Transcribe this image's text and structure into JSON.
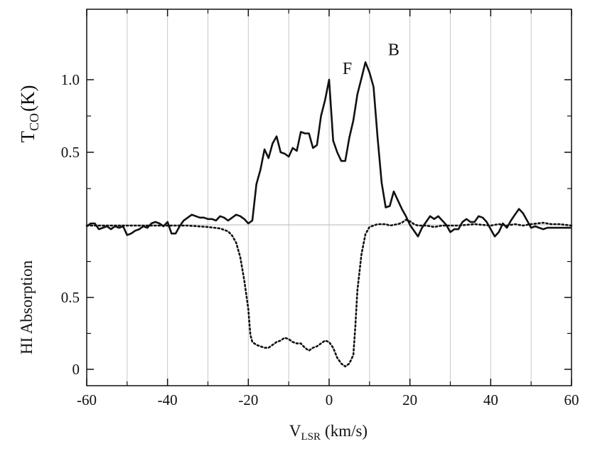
{
  "chart_data": {
    "type": "line",
    "xlabel_main": "V",
    "xlabel_sub": "LSR",
    "xlabel_unit": "(km/s)",
    "ylabel_top_main": "T",
    "ylabel_top_sub": "CO",
    "ylabel_top_unit": "(K)",
    "ylabel_bottom": "HI Absorption",
    "xlim": [
      -60,
      60
    ],
    "x_ticks": [
      "-60",
      "-40",
      "-20",
      "0",
      "20",
      "40",
      "60"
    ],
    "x_gridlines": [
      -50,
      -40,
      -30,
      -20,
      -10,
      0,
      10,
      20,
      30,
      40,
      50
    ],
    "y_ticks_top": [
      "0.5",
      "1.0"
    ],
    "y_ticks_bottom": [
      "0",
      "0.5"
    ],
    "grid": "vertical",
    "annotations": [
      {
        "text": "F",
        "x": 4.5,
        "y": 1.04
      },
      {
        "text": "B",
        "x": 16,
        "y": 1.17
      }
    ],
    "series": [
      {
        "axis": "top",
        "unit": "K",
        "style": "solid",
        "points": [
          [
            -60,
            -0.01
          ],
          [
            -59,
            0.01
          ],
          [
            -58,
            0.01
          ],
          [
            -57,
            -0.03
          ],
          [
            -56,
            -0.02
          ],
          [
            -55,
            -0.01
          ],
          [
            -54,
            -0.03
          ],
          [
            -53,
            -0.01
          ],
          [
            -52,
            -0.02
          ],
          [
            -51,
            -0.01
          ],
          [
            -50,
            -0.07
          ],
          [
            -49,
            -0.06
          ],
          [
            -48,
            -0.04
          ],
          [
            -47,
            -0.03
          ],
          [
            -46,
            -0.01
          ],
          [
            -45,
            -0.02
          ],
          [
            -44,
            0.01
          ],
          [
            -43,
            0.02
          ],
          [
            -42,
            0.01
          ],
          [
            -41,
            -0.01
          ],
          [
            -40,
            0.02
          ],
          [
            -39,
            -0.06
          ],
          [
            -38,
            -0.06
          ],
          [
            -37,
            -0.01
          ],
          [
            -36,
            0.03
          ],
          [
            -35,
            0.05
          ],
          [
            -34,
            0.07
          ],
          [
            -33,
            0.06
          ],
          [
            -32,
            0.05
          ],
          [
            -31,
            0.05
          ],
          [
            -30,
            0.04
          ],
          [
            -29,
            0.04
          ],
          [
            -28,
            0.03
          ],
          [
            -27,
            0.06
          ],
          [
            -26,
            0.05
          ],
          [
            -25,
            0.03
          ],
          [
            -24,
            0.05
          ],
          [
            -23,
            0.07
          ],
          [
            -22,
            0.06
          ],
          [
            -21,
            0.04
          ],
          [
            -20,
            0.01
          ],
          [
            -19,
            0.03
          ],
          [
            -18,
            0.28
          ],
          [
            -17,
            0.38
          ],
          [
            -16,
            0.52
          ],
          [
            -15,
            0.46
          ],
          [
            -14,
            0.56
          ],
          [
            -13,
            0.61
          ],
          [
            -12,
            0.5
          ],
          [
            -11,
            0.49
          ],
          [
            -10,
            0.47
          ],
          [
            -9,
            0.53
          ],
          [
            -8,
            0.51
          ],
          [
            -7,
            0.64
          ],
          [
            -6,
            0.63
          ],
          [
            -5,
            0.63
          ],
          [
            -4,
            0.53
          ],
          [
            -3,
            0.55
          ],
          [
            -2,
            0.75
          ],
          [
            -1,
            0.86
          ],
          [
            0,
            1.0
          ],
          [
            1,
            0.58
          ],
          [
            2,
            0.5
          ],
          [
            3,
            0.44
          ],
          [
            4,
            0.44
          ],
          [
            5,
            0.6
          ],
          [
            6,
            0.72
          ],
          [
            7,
            0.9
          ],
          [
            8,
            1.01
          ],
          [
            9,
            1.12
          ],
          [
            10,
            1.05
          ],
          [
            11,
            0.95
          ],
          [
            12,
            0.6
          ],
          [
            13,
            0.29
          ],
          [
            14,
            0.12
          ],
          [
            15,
            0.13
          ],
          [
            16,
            0.23
          ],
          [
            17,
            0.17
          ],
          [
            18,
            0.11
          ],
          [
            19,
            0.06
          ],
          [
            20,
            0.0
          ],
          [
            21,
            -0.04
          ],
          [
            22,
            -0.08
          ],
          [
            23,
            -0.02
          ],
          [
            24,
            0.02
          ],
          [
            25,
            0.06
          ],
          [
            26,
            0.04
          ],
          [
            27,
            0.06
          ],
          [
            28,
            0.03
          ],
          [
            29,
            0.0
          ],
          [
            30,
            -0.05
          ],
          [
            31,
            -0.03
          ],
          [
            32,
            -0.03
          ],
          [
            33,
            0.02
          ],
          [
            34,
            0.04
          ],
          [
            35,
            0.02
          ],
          [
            36,
            0.02
          ],
          [
            37,
            0.06
          ],
          [
            38,
            0.05
          ],
          [
            39,
            0.02
          ],
          [
            40,
            -0.03
          ],
          [
            41,
            -0.08
          ],
          [
            42,
            -0.05
          ],
          [
            43,
            0.01
          ],
          [
            44,
            -0.02
          ],
          [
            45,
            0.03
          ],
          [
            46,
            0.07
          ],
          [
            47,
            0.11
          ],
          [
            48,
            0.08
          ],
          [
            49,
            0.03
          ],
          [
            50,
            -0.02
          ],
          [
            51,
            -0.01
          ],
          [
            52,
            -0.02
          ],
          [
            53,
            -0.03
          ],
          [
            54,
            -0.02
          ],
          [
            55,
            -0.02
          ],
          [
            56,
            -0.02
          ],
          [
            57,
            -0.02
          ],
          [
            58,
            -0.02
          ],
          [
            59,
            -0.02
          ],
          [
            60,
            -0.02
          ]
        ]
      },
      {
        "axis": "bottom",
        "unit": "absorption",
        "style": "dotted",
        "points": [
          [
            -60,
            1.0
          ],
          [
            -50,
            1.0
          ],
          [
            -40,
            1.0
          ],
          [
            -35,
            1.0
          ],
          [
            -30,
            0.99
          ],
          [
            -27,
            0.98
          ],
          [
            -25,
            0.96
          ],
          [
            -24,
            0.93
          ],
          [
            -23,
            0.88
          ],
          [
            -22,
            0.78
          ],
          [
            -21,
            0.62
          ],
          [
            -20,
            0.42
          ],
          [
            -19.5,
            0.24
          ],
          [
            -19,
            0.19
          ],
          [
            -18,
            0.17
          ],
          [
            -17,
            0.16
          ],
          [
            -16,
            0.15
          ],
          [
            -15,
            0.15
          ],
          [
            -14,
            0.17
          ],
          [
            -13,
            0.19
          ],
          [
            -12,
            0.2
          ],
          [
            -11,
            0.22
          ],
          [
            -10,
            0.21
          ],
          [
            -9,
            0.19
          ],
          [
            -8,
            0.18
          ],
          [
            -7,
            0.18
          ],
          [
            -6,
            0.15
          ],
          [
            -5,
            0.13
          ],
          [
            -4,
            0.15
          ],
          [
            -3,
            0.16
          ],
          [
            -2,
            0.18
          ],
          [
            -1,
            0.2
          ],
          [
            0,
            0.19
          ],
          [
            1,
            0.15
          ],
          [
            2,
            0.08
          ],
          [
            3,
            0.04
          ],
          [
            4,
            0.02
          ],
          [
            5,
            0.04
          ],
          [
            6,
            0.1
          ],
          [
            6.5,
            0.3
          ],
          [
            7,
            0.55
          ],
          [
            8,
            0.8
          ],
          [
            9,
            0.94
          ],
          [
            10,
            0.99
          ],
          [
            11,
            1.0
          ],
          [
            12,
            1.01
          ],
          [
            14,
            1.01
          ],
          [
            15,
            1.0
          ],
          [
            17,
            1.01
          ],
          [
            18,
            1.02
          ],
          [
            19,
            1.04
          ],
          [
            20,
            1.03
          ],
          [
            21,
            1.01
          ],
          [
            22,
            1.0
          ],
          [
            24,
            1.0
          ],
          [
            26,
            0.99
          ],
          [
            28,
            1.0
          ],
          [
            32,
            1.0
          ],
          [
            36,
            1.01
          ],
          [
            40,
            1.0
          ],
          [
            42,
            1.01
          ],
          [
            44,
            1.0
          ],
          [
            46,
            1.01
          ],
          [
            48,
            1.0
          ],
          [
            50,
            1.01
          ],
          [
            53,
            1.02
          ],
          [
            55,
            1.01
          ],
          [
            57,
            1.01
          ],
          [
            60,
            1.0
          ]
        ]
      }
    ]
  }
}
